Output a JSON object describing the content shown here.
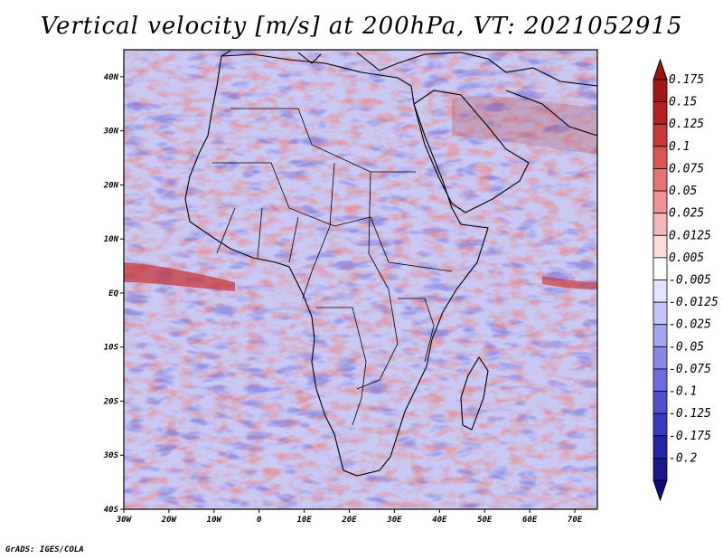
{
  "title": "Vertical velocity [m/s] at 200hPa, VT: 2021052915",
  "footer": "GrADS: IGES/COLA",
  "map": {
    "lon_range": [
      -30,
      75
    ],
    "lat_range": [
      -40,
      45
    ],
    "lon_ticks": [
      "30W",
      "20W",
      "10W",
      "0",
      "10E",
      "20E",
      "30E",
      "40E",
      "50E",
      "60E",
      "70E"
    ],
    "lat_ticks": [
      "40N",
      "30N",
      "20N",
      "10N",
      "EQ",
      "10S",
      "20S",
      "30S",
      "40S"
    ],
    "variable": "Vertical velocity",
    "level": "200hPa",
    "valid_time": "2021052915"
  },
  "colorbar": {
    "labels": [
      "0.175",
      "0.15",
      "0.125",
      "0.1",
      "0.075",
      "0.05",
      "0.025",
      "0.0125",
      "0.005",
      "-0.005",
      "-0.0125",
      "-0.025",
      "-0.05",
      "-0.075",
      "-0.1",
      "-0.125",
      "-0.175",
      "-0.2"
    ],
    "colors": [
      "#a01818",
      "#b82020",
      "#cc3838",
      "#dc5454",
      "#e67474",
      "#ee9494",
      "#f5b8b8",
      "#fadcdc",
      "#ffffff",
      "#e4e4fc",
      "#c4c4f8",
      "#a4a4f0",
      "#8888e8",
      "#6c6ce0",
      "#5050d0",
      "#3838c0",
      "#2424a8",
      "#18188c"
    ],
    "top_arrow_color": "#9a1414",
    "bottom_arrow_color": "#140880"
  }
}
